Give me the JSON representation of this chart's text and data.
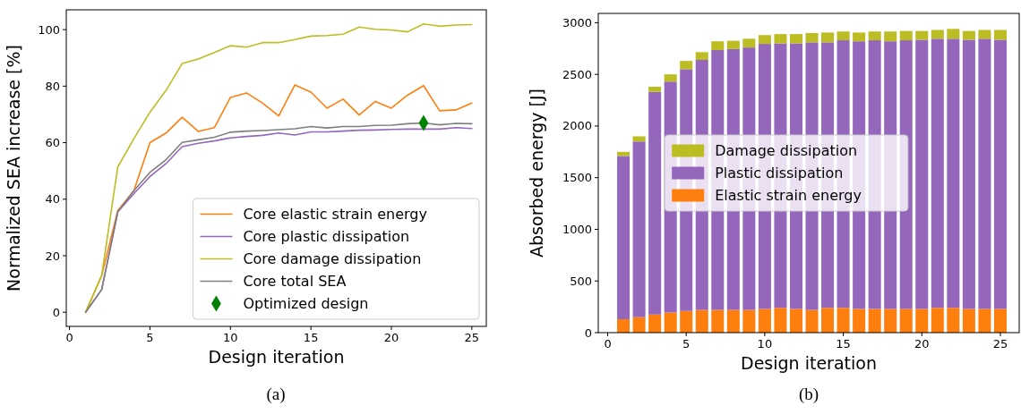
{
  "chart_data": [
    {
      "type": "line",
      "xlabel": "Design iteration",
      "ylabel": "Normalized SEA increase [%]",
      "annotations": [
        "(a)"
      ],
      "x": [
        1,
        2,
        3,
        4,
        5,
        6,
        7,
        8,
        9,
        10,
        11,
        12,
        13,
        14,
        15,
        16,
        17,
        18,
        19,
        20,
        21,
        22,
        23,
        24,
        25
      ],
      "xlim": [
        -0.2,
        25.9
      ],
      "xticks": [
        0,
        5,
        10,
        15,
        20,
        25
      ],
      "ylim": [
        -5,
        107
      ],
      "yticks": [
        0,
        20,
        40,
        60,
        80,
        100
      ],
      "legend": "bottom right",
      "series": [
        {
          "name": "Core elastic strain energy",
          "color": "#ff7f0e",
          "values": [
            0,
            13,
            36,
            43,
            60,
            63.4,
            69,
            64,
            65.3,
            76,
            77.6,
            74,
            69.5,
            80.4,
            77.9,
            72.2,
            75.4,
            69.8,
            74.6,
            72.2,
            76.8,
            80.2,
            71.3,
            71.6,
            74
          ]
        },
        {
          "name": "Core plastic dissipation",
          "color": "#9467bd",
          "values": [
            0,
            8,
            35.5,
            42,
            48,
            52.6,
            58.6,
            59.8,
            60.6,
            61.7,
            62.2,
            62.6,
            63.4,
            62.7,
            63.8,
            63.8,
            64.1,
            64.4,
            64.5,
            64.7,
            64.8,
            64.8,
            64.8,
            65.3,
            65
          ]
        },
        {
          "name": "Core damage dissipation",
          "color": "#bcbd22",
          "values": [
            0,
            13,
            51.4,
            61.4,
            70.8,
            78.5,
            88,
            89.6,
            91.9,
            94.3,
            93.8,
            95.4,
            95.4,
            96.5,
            97.7,
            97.9,
            98.4,
            100.9,
            100.1,
            99.9,
            99.2,
            102,
            101.2,
            101.6,
            101.8
          ]
        },
        {
          "name": "Core total SEA",
          "color": "#7f7f7f",
          "values": [
            0,
            8,
            35.5,
            43,
            49.5,
            54,
            60.1,
            61,
            61.9,
            63.7,
            64.1,
            64.3,
            64.6,
            64.9,
            65.7,
            65.2,
            65.7,
            65.7,
            66.1,
            66.2,
            66.7,
            67,
            66.3,
            66.8,
            66.7
          ]
        },
        {
          "name": "Optimized design",
          "type": "scatter",
          "marker": "diamond",
          "color": "#008000",
          "x": [
            22
          ],
          "values": [
            67
          ]
        }
      ]
    },
    {
      "type": "bar",
      "stacked": true,
      "xlabel": "Design iteration",
      "ylabel": "Absorbed energy [J]",
      "annotations": [
        "(b)"
      ],
      "x": [
        1,
        2,
        3,
        4,
        5,
        6,
        7,
        8,
        9,
        10,
        11,
        12,
        13,
        14,
        15,
        16,
        17,
        18,
        19,
        20,
        21,
        22,
        23,
        24,
        25
      ],
      "xlim": [
        -0.6,
        26.2
      ],
      "xticks": [
        0,
        5,
        10,
        15,
        20,
        25
      ],
      "ylim": [
        0,
        3090
      ],
      "yticks": [
        0,
        500,
        1000,
        1500,
        2000,
        2500,
        3000
      ],
      "legend": "center",
      "series": [
        {
          "name": "Elastic strain energy",
          "color": "#ff7f0e",
          "values": [
            130,
            150,
            175,
            195,
            210,
            220,
            220,
            220,
            220,
            230,
            240,
            230,
            220,
            240,
            240,
            230,
            230,
            230,
            230,
            230,
            240,
            240,
            230,
            230,
            230
          ]
        },
        {
          "name": "Plastic dissipation",
          "color": "#9467bd",
          "values": [
            1580,
            1700,
            2155,
            2235,
            2340,
            2420,
            2515,
            2525,
            2540,
            2565,
            2560,
            2570,
            2590,
            2570,
            2590,
            2590,
            2600,
            2590,
            2600,
            2605,
            2605,
            2605,
            2605,
            2615,
            2605
          ]
        },
        {
          "name": "Damage dissipation",
          "color": "#bcbd22",
          "values": [
            40,
            50,
            50,
            70,
            80,
            75,
            85,
            80,
            85,
            85,
            90,
            90,
            90,
            95,
            85,
            85,
            85,
            95,
            90,
            85,
            85,
            95,
            85,
            85,
            95
          ]
        }
      ]
    }
  ]
}
